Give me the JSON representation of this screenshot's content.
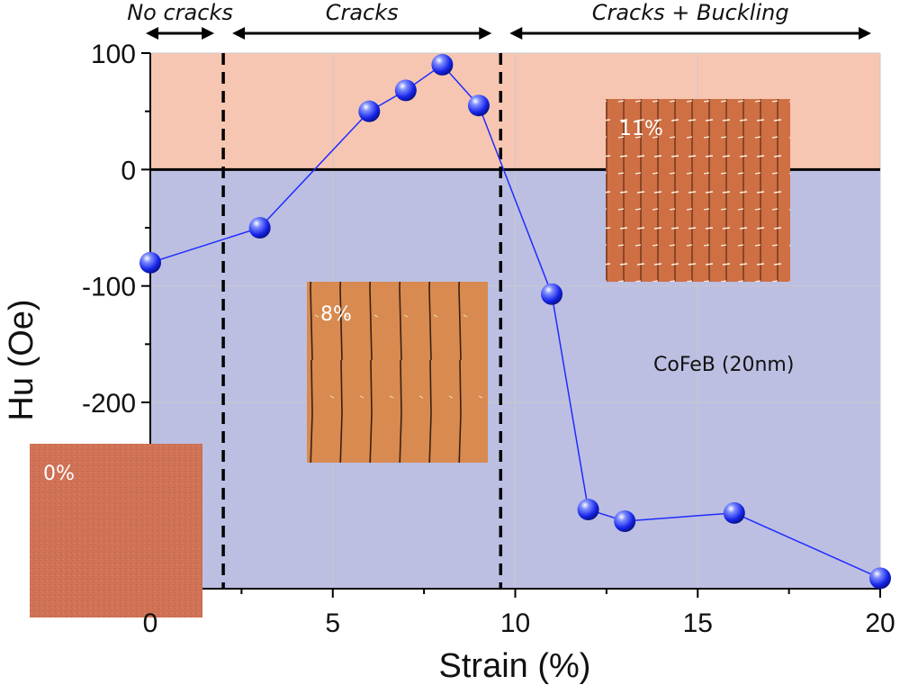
{
  "chart_data": {
    "type": "line",
    "title": "",
    "xlabel": "Strain (%)",
    "ylabel": "Hu (Oe)",
    "xlim": [
      0,
      20
    ],
    "ylim": [
      -360,
      100
    ],
    "x_ticks": [
      0,
      5,
      10,
      15,
      20
    ],
    "y_ticks": [
      100,
      0,
      -100,
      -200
    ],
    "grid": true,
    "series": [
      {
        "name": "CoFeB (20nm)",
        "x": [
          0,
          3,
          6,
          7,
          8,
          9,
          11,
          12,
          13,
          16,
          20
        ],
        "y": [
          -80,
          -50,
          50,
          68,
          90,
          55,
          -107,
          -292,
          -302,
          -295,
          -351
        ]
      }
    ],
    "zero_line": 0,
    "regions": [
      {
        "label": "No cracks",
        "from": 0,
        "to": 2
      },
      {
        "label": "Cracks",
        "from": 2,
        "to": 9.6
      },
      {
        "label": "Cracks + Buckling",
        "from": 9.6,
        "to": 20
      }
    ],
    "boundaries": [
      2,
      9.6
    ],
    "annotation": "CoFeB (20nm)",
    "insets": [
      {
        "label": "0%"
      },
      {
        "label": "8%"
      },
      {
        "label": "11%"
      }
    ],
    "colors": {
      "positive_fill": "#f7c6b2",
      "negative_fill": "#bcbfe2",
      "series": "#1f2bff",
      "marker": "#1f2bff"
    }
  }
}
